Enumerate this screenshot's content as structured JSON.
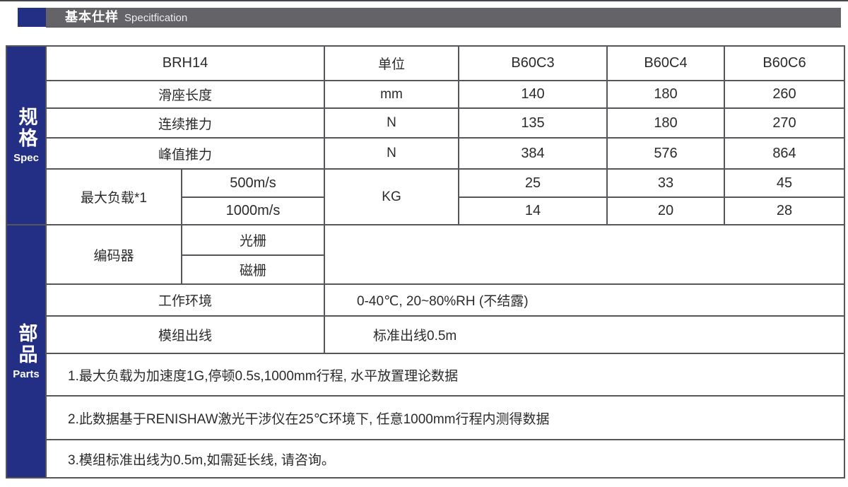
{
  "header": {
    "title_zh": "基本仕样",
    "title_en": "Specitfication"
  },
  "sidebar": {
    "spec_zh": "规格",
    "spec_en": "Spec",
    "parts_zh": "部品",
    "parts_en": "Parts"
  },
  "table": {
    "model": "BRH14",
    "unit_header": "单位",
    "columns": [
      "B60C3",
      "B60C4",
      "B60C6"
    ],
    "rows": [
      {
        "label": "滑座长度",
        "unit": "mm",
        "values": [
          "140",
          "180",
          "260"
        ]
      },
      {
        "label": "连续推力",
        "unit": "N",
        "values": [
          "135",
          "180",
          "270"
        ]
      },
      {
        "label": "峰值推力",
        "unit": "N",
        "values": [
          "384",
          "576",
          "864"
        ]
      }
    ],
    "max_load": {
      "label": "最大负载*1",
      "unit": "KG",
      "sub_rows": [
        {
          "label": "500m/s",
          "values": [
            "25",
            "33",
            "45"
          ]
        },
        {
          "label": "1000m/s",
          "values": [
            "14",
            "20",
            "28"
          ]
        }
      ]
    },
    "encoder": {
      "label": "编码器",
      "sub_rows": [
        {
          "label": "光栅"
        },
        {
          "label": "磁栅"
        }
      ]
    },
    "environment": {
      "label": "工作环境",
      "value": "0-40℃, 20~80%RH (不结露)"
    },
    "cable": {
      "label": "模组出线",
      "value": "标准出线0.5m"
    },
    "notes": [
      {
        "text": "1.最大负载为加速度1G,停顿0.5s,1000mm行程, 水平放置理论数据"
      },
      {
        "text": "2.此数据基于RENISHAW激光干涉仪在25℃环境下, 任意1000mm行程内测得数据"
      },
      {
        "text": "3.模组标准出线为0.5m,如需延长线, 请咨询。"
      }
    ]
  },
  "colors": {
    "accent_blue": "#232e85",
    "header_gray": "#636368",
    "line_gray": "#55565a"
  }
}
